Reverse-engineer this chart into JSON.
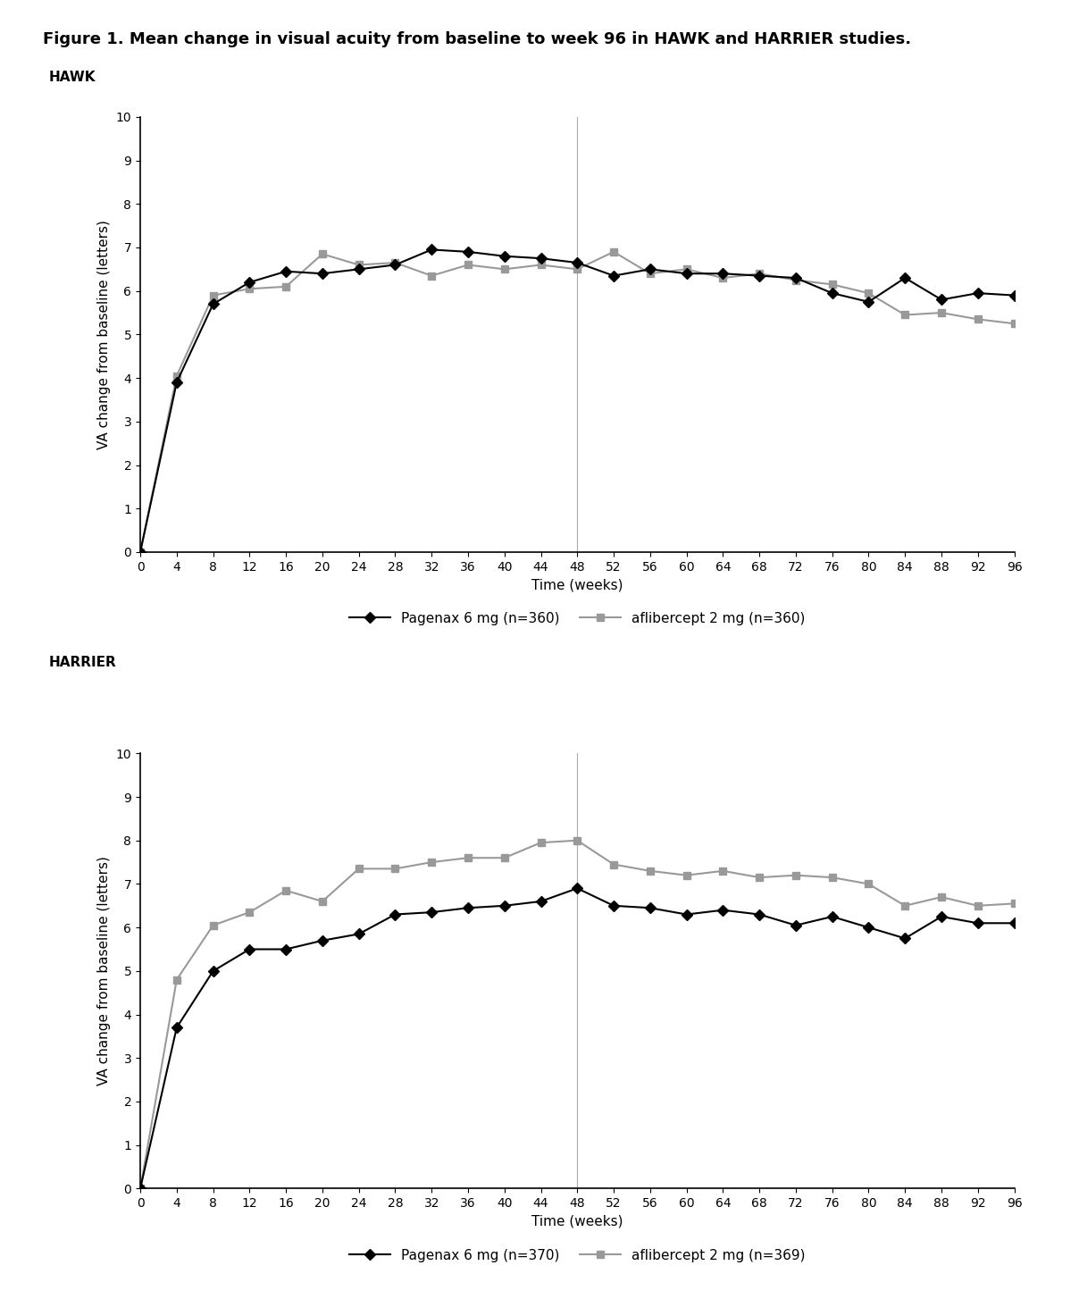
{
  "title": "Figure 1. Mean change in visual acuity from baseline to week 96 in HAWK and HARRIER studies.",
  "hawk_label": "HAWK",
  "harrier_label": "HARRIER",
  "xlabel": "Time (weeks)",
  "ylabel": "VA change from baseline (letters)",
  "x_ticks": [
    0,
    4,
    8,
    12,
    16,
    20,
    24,
    28,
    32,
    36,
    40,
    44,
    48,
    52,
    56,
    60,
    64,
    68,
    72,
    76,
    80,
    84,
    88,
    92,
    96
  ],
  "y_ticks": [
    0,
    1,
    2,
    3,
    4,
    5,
    6,
    7,
    8,
    9,
    10
  ],
  "ylim": [
    0,
    10
  ],
  "xlim": [
    0,
    96
  ],
  "vline_x": 48,
  "hawk_pagenax_x": [
    0,
    4,
    8,
    12,
    16,
    20,
    24,
    28,
    32,
    36,
    40,
    44,
    48,
    52,
    56,
    60,
    64,
    68,
    72,
    76,
    80,
    84,
    88,
    92,
    96
  ],
  "hawk_pagenax_y": [
    0,
    3.9,
    5.7,
    6.2,
    6.45,
    6.4,
    6.5,
    6.6,
    6.95,
    6.9,
    6.8,
    6.75,
    6.65,
    6.35,
    6.5,
    6.4,
    6.4,
    6.35,
    6.3,
    5.95,
    5.75,
    6.3,
    5.8,
    5.95,
    5.9
  ],
  "hawk_aflibercept_x": [
    0,
    4,
    8,
    12,
    16,
    20,
    24,
    28,
    32,
    36,
    40,
    44,
    48,
    52,
    56,
    60,
    64,
    68,
    72,
    76,
    80,
    84,
    88,
    92,
    96
  ],
  "hawk_aflibercept_y": [
    0,
    4.05,
    5.9,
    6.05,
    6.1,
    6.85,
    6.6,
    6.65,
    6.35,
    6.6,
    6.5,
    6.6,
    6.5,
    6.9,
    6.4,
    6.5,
    6.3,
    6.4,
    6.25,
    6.15,
    5.95,
    5.45,
    5.5,
    5.35,
    5.25
  ],
  "harrier_pagenax_x": [
    0,
    4,
    8,
    12,
    16,
    20,
    24,
    28,
    32,
    36,
    40,
    44,
    48,
    52,
    56,
    60,
    64,
    68,
    72,
    76,
    80,
    84,
    88,
    92,
    96
  ],
  "harrier_pagenax_y": [
    0,
    3.7,
    5.0,
    5.5,
    5.5,
    5.7,
    5.85,
    6.3,
    6.35,
    6.45,
    6.5,
    6.6,
    6.9,
    6.5,
    6.45,
    6.3,
    6.4,
    6.3,
    6.05,
    6.25,
    6.0,
    5.75,
    6.25,
    6.1,
    6.1
  ],
  "harrier_aflibercept_x": [
    0,
    4,
    8,
    12,
    16,
    20,
    24,
    28,
    32,
    36,
    40,
    44,
    48,
    52,
    56,
    60,
    64,
    68,
    72,
    76,
    80,
    84,
    88,
    92,
    96
  ],
  "harrier_aflibercept_y": [
    0,
    4.8,
    6.05,
    6.35,
    6.85,
    6.6,
    7.35,
    7.35,
    7.5,
    7.6,
    7.6,
    7.95,
    8.0,
    7.45,
    7.3,
    7.2,
    7.3,
    7.15,
    7.2,
    7.15,
    7.0,
    6.5,
    6.7,
    6.5,
    6.55
  ],
  "hawk_legend_pagenax": "Pagenax 6 mg (n=360)",
  "hawk_legend_aflibercept": "aflibercept 2 mg (n=360)",
  "harrier_legend_pagenax": "Pagenax 6 mg (n=370)",
  "harrier_legend_aflibercept": "aflibercept 2 mg (n=369)",
  "pagenax_color": "#000000",
  "aflibercept_color": "#999999",
  "background_color": "#ffffff",
  "title_fontsize": 13,
  "label_fontsize": 11,
  "tick_fontsize": 10,
  "legend_fontsize": 11,
  "section_label_fontsize": 11
}
